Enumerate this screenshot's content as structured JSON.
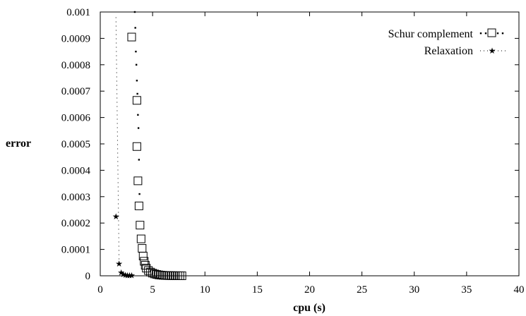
{
  "chart_data": {
    "type": "scatter",
    "xlabel": "cpu (s)",
    "ylabel": "error",
    "xlim": [
      0,
      40
    ],
    "ylim": [
      0,
      0.001
    ],
    "x_ticks": [
      "0",
      "5",
      "10",
      "15",
      "20",
      "25",
      "30",
      "35",
      "40"
    ],
    "y_ticks": [
      "0",
      "0.0001",
      "0.0002",
      "0.0003",
      "0.0004",
      "0.0005",
      "0.0006",
      "0.0007",
      "0.0008",
      "0.0009",
      "0.001"
    ],
    "grid": false,
    "legend_position": "top-right",
    "series": [
      {
        "name": "Schur complement",
        "marker": "square",
        "line": "dotted",
        "x": [
          3.0,
          3.5,
          3.5,
          3.6,
          3.7,
          3.8,
          3.9,
          4.0,
          4.1,
          4.2,
          4.3,
          4.4,
          4.6,
          4.8,
          5.0,
          5.2,
          5.4,
          5.6,
          5.8,
          6.0,
          6.2,
          6.4,
          6.6,
          6.8,
          7.0,
          7.2,
          7.4,
          7.6,
          7.8
        ],
        "y": [
          0.000905,
          0.000665,
          0.00049,
          0.00036,
          0.000265,
          0.000192,
          0.00014,
          0.000104,
          7.5e-05,
          5.5e-05,
          4e-05,
          2.9e-05,
          2e-05,
          1.4e-05,
          1e-05,
          7e-06,
          5e-06,
          3.5e-06,
          2.5e-06,
          1.8e-06,
          1.3e-06,
          1e-06,
          7e-07,
          5e-07,
          4e-07,
          3e-07,
          2e-07,
          1.5e-07,
          1e-07
        ],
        "dotted_guide": {
          "x": [
            3.3,
            3.35,
            3.4,
            3.45,
            3.5,
            3.55,
            3.6,
            3.65,
            3.7,
            3.75
          ],
          "y": [
            0.001,
            0.00094,
            0.00085,
            0.0008,
            0.00074,
            0.00069,
            0.00061,
            0.00056,
            0.00044,
            0.00031
          ]
        }
      },
      {
        "name": "Relaxation",
        "marker": "star",
        "line": "dotted",
        "x": [
          1.5,
          1.8,
          2.0,
          2.2,
          2.4,
          2.6,
          2.8,
          3.0
        ],
        "y": [
          0.000225,
          4.5e-05,
          1.2e-05,
          5e-06,
          3e-06,
          2e-06,
          1.5e-06,
          1e-06
        ],
        "dotted_guide": {
          "x": [
            1.5,
            1.8
          ],
          "y": [
            0.00098,
            4.5e-05
          ]
        }
      }
    ]
  }
}
